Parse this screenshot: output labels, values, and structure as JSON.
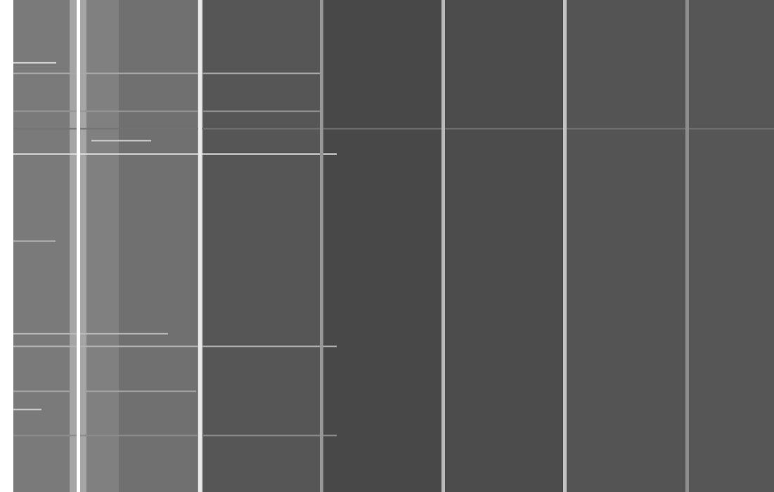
{
  "chart_data": {
    "type": "heatmap",
    "tick_labels": false,
    "xlim": [
      0,
      1082
    ],
    "ylim": [
      0,
      701
    ],
    "value_range": [
      0,
      255
    ],
    "bands": [
      {
        "x1": 0,
        "x2": 80,
        "value": 122
      },
      {
        "x1": 80,
        "x2": 104,
        "value": 165
      },
      {
        "x1": 104,
        "x2": 150,
        "value": 128
      },
      {
        "x1": 150,
        "x2": 262,
        "value": 112
      },
      {
        "x1": 262,
        "x2": 270,
        "value": 150
      },
      {
        "x1": 270,
        "x2": 436,
        "value": 86
      },
      {
        "x1": 436,
        "x2": 610,
        "value": 72
      },
      {
        "x1": 610,
        "x2": 783,
        "value": 76
      },
      {
        "x1": 783,
        "x2": 957,
        "value": 84
      },
      {
        "x1": 957,
        "x2": 1082,
        "value": 86
      }
    ],
    "vertical_lines": [
      {
        "x": 92,
        "value": 255
      },
      {
        "x": 265,
        "value": 235
      },
      {
        "x": 438,
        "value": 150
      },
      {
        "x": 611,
        "value": 185
      },
      {
        "x": 784,
        "value": 195
      },
      {
        "x": 958,
        "value": 140
      }
    ],
    "streaks": [
      {
        "y": 89,
        "x1": 0,
        "x2": 61,
        "value": 225
      },
      {
        "y": 104,
        "x1": 0,
        "x2": 440,
        "value": 170
      },
      {
        "y": 158,
        "x1": 0,
        "x2": 440,
        "value": 150
      },
      {
        "y": 183,
        "x1": 0,
        "x2": 1082,
        "value": 115
      },
      {
        "y": 200,
        "x1": 111,
        "x2": 196,
        "value": 205
      },
      {
        "y": 219,
        "x1": 0,
        "x2": 460,
        "value": 230
      },
      {
        "y": 343,
        "x1": 0,
        "x2": 60,
        "value": 180
      },
      {
        "y": 475,
        "x1": 0,
        "x2": 220,
        "value": 190
      },
      {
        "y": 493,
        "x1": 0,
        "x2": 460,
        "value": 180
      },
      {
        "y": 557,
        "x1": 0,
        "x2": 260,
        "value": 165
      },
      {
        "y": 583,
        "x1": 0,
        "x2": 40,
        "value": 200
      },
      {
        "y": 620,
        "x1": 0,
        "x2": 460,
        "value": 140
      }
    ]
  }
}
